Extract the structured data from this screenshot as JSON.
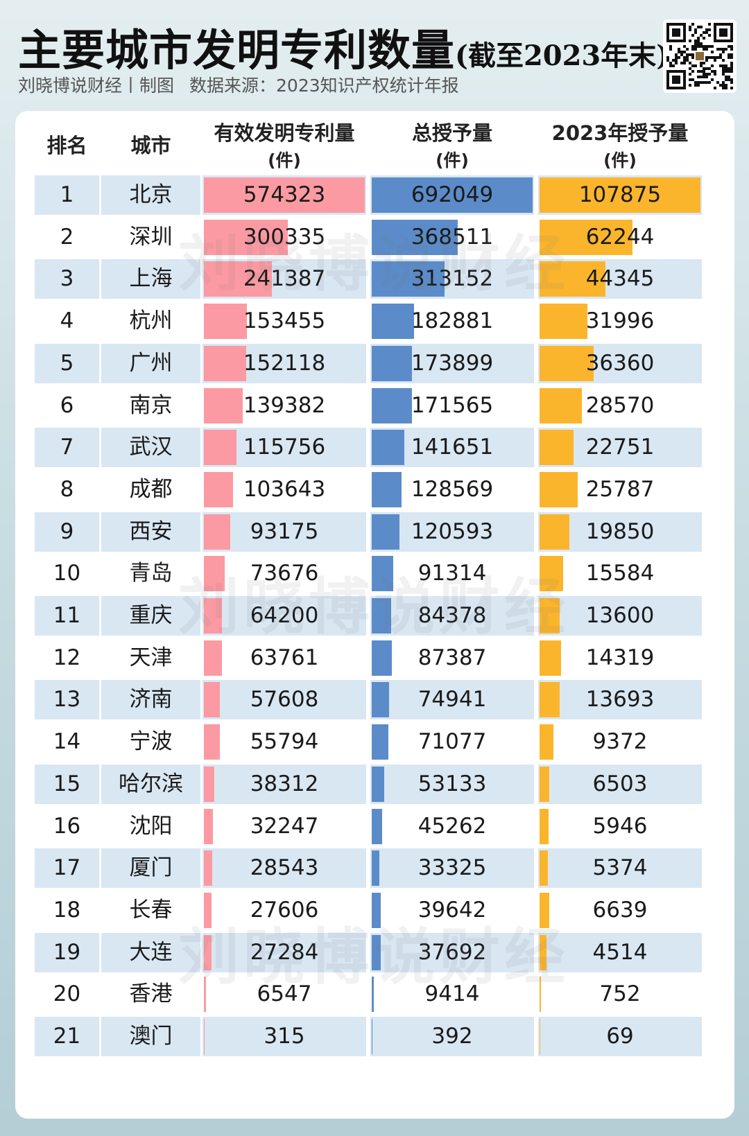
{
  "header": {
    "title": "主要城市发明专利数量",
    "title_suffix": "(截至2023年末)",
    "author": "刘晓博说财经丨制图",
    "source": "数据来源：2023知识产权统计年报"
  },
  "watermark": "刘晓博说财经",
  "colors": {
    "pink": "#fb9aa2",
    "blue": "#5b8cc9",
    "orange": "#fbb52c",
    "row_alt": "#d9e7f3"
  },
  "chart_data": {
    "type": "table",
    "columns": [
      {
        "label": "排名",
        "unit": ""
      },
      {
        "label": "城市",
        "unit": ""
      },
      {
        "label": "有效发明专利量",
        "unit": "(件)"
      },
      {
        "label": "总授予量",
        "unit": "(件)"
      },
      {
        "label": "2023年授予量",
        "unit": "(件)"
      }
    ],
    "rows": [
      {
        "rank": "1",
        "city": "北京",
        "valid": 574323,
        "total": 692049,
        "y2023": 107875
      },
      {
        "rank": "2",
        "city": "深圳",
        "valid": 300335,
        "total": 368511,
        "y2023": 62244
      },
      {
        "rank": "3",
        "city": "上海",
        "valid": 241387,
        "total": 313152,
        "y2023": 44345
      },
      {
        "rank": "4",
        "city": "杭州",
        "valid": 153455,
        "total": 182881,
        "y2023": 31996
      },
      {
        "rank": "5",
        "city": "广州",
        "valid": 152118,
        "total": 173899,
        "y2023": 36360
      },
      {
        "rank": "6",
        "city": "南京",
        "valid": 139382,
        "total": 171565,
        "y2023": 28570
      },
      {
        "rank": "7",
        "city": "武汉",
        "valid": 115756,
        "total": 141651,
        "y2023": 22751
      },
      {
        "rank": "8",
        "city": "成都",
        "valid": 103643,
        "total": 128569,
        "y2023": 25787
      },
      {
        "rank": "9",
        "city": "西安",
        "valid": 93175,
        "total": 120593,
        "y2023": 19850
      },
      {
        "rank": "10",
        "city": "青岛",
        "valid": 73676,
        "total": 91314,
        "y2023": 15584
      },
      {
        "rank": "11",
        "city": "重庆",
        "valid": 64200,
        "total": 84378,
        "y2023": 13600
      },
      {
        "rank": "12",
        "city": "天津",
        "valid": 63761,
        "total": 87387,
        "y2023": 14319
      },
      {
        "rank": "13",
        "city": "济南",
        "valid": 57608,
        "total": 74941,
        "y2023": 13693
      },
      {
        "rank": "14",
        "city": "宁波",
        "valid": 55794,
        "total": 71077,
        "y2023": 9372
      },
      {
        "rank": "15",
        "city": "哈尔滨",
        "valid": 38312,
        "total": 53133,
        "y2023": 6503
      },
      {
        "rank": "16",
        "city": "沈阳",
        "valid": 32247,
        "total": 45262,
        "y2023": 5946
      },
      {
        "rank": "17",
        "city": "厦门",
        "valid": 28543,
        "total": 33325,
        "y2023": 5374
      },
      {
        "rank": "18",
        "city": "长春",
        "valid": 27606,
        "total": 39642,
        "y2023": 6639
      },
      {
        "rank": "19",
        "city": "大连",
        "valid": 27284,
        "total": 37692,
        "y2023": 4514
      },
      {
        "rank": "20",
        "city": "香港",
        "valid": 6547,
        "total": 9414,
        "y2023": 752
      },
      {
        "rank": "21",
        "city": "澳门",
        "valid": 315,
        "total": 392,
        "y2023": 69
      }
    ]
  }
}
